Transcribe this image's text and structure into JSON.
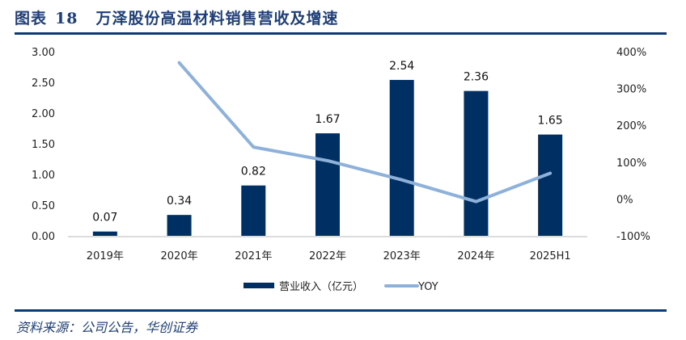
{
  "figure": {
    "label": "图表",
    "number": "18",
    "caption": "万泽股份高温材料销售营收及增速",
    "source": "资料来源：公司公告，华创证券"
  },
  "colors": {
    "bar": "#002F63",
    "line": "#8EB1DA",
    "rule": "#0B3A75",
    "title": "#1F3E77"
  },
  "chart_data": {
    "type": "bar+line",
    "title": "万泽股份高温材料销售营收及增速",
    "categories": [
      "2019年",
      "2020年",
      "2021年",
      "2022年",
      "2023年",
      "2024年",
      "2025H1"
    ],
    "series": [
      {
        "name": "营业收入（亿元）",
        "type": "bar",
        "axis": "left",
        "values": [
          0.07,
          0.34,
          0.82,
          1.67,
          2.54,
          2.36,
          1.65
        ],
        "labels": [
          "0.07",
          "0.34",
          "0.82",
          "1.67",
          "2.54",
          "2.36",
          "1.65"
        ]
      },
      {
        "name": "YOY",
        "type": "line",
        "axis": "right",
        "values": [
          null,
          370,
          141,
          104,
          52,
          -7,
          70
        ]
      }
    ],
    "left_axis": {
      "ylim": [
        0,
        3
      ],
      "ticks": [
        0,
        0.5,
        1.0,
        1.5,
        2.0,
        2.5,
        3.0
      ],
      "tick_labels": [
        "0.00",
        "0.50",
        "1.00",
        "1.50",
        "2.00",
        "2.50",
        "3.00"
      ]
    },
    "right_axis": {
      "ylim": [
        -100,
        400
      ],
      "ticks": [
        -100,
        0,
        100,
        200,
        300,
        400
      ],
      "tick_labels": [
        "-100%",
        "0%",
        "100%",
        "200%",
        "300%",
        "400%"
      ]
    },
    "xlabel": "",
    "ylabel": "",
    "grid": false,
    "legend_position": "bottom"
  }
}
